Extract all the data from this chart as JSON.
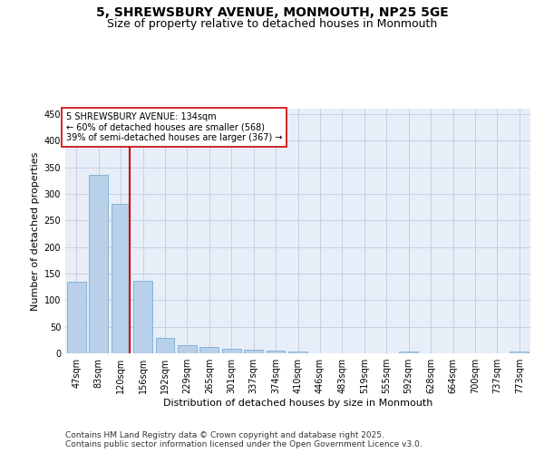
{
  "title_line1": "5, SHREWSBURY AVENUE, MONMOUTH, NP25 5GE",
  "title_line2": "Size of property relative to detached houses in Monmouth",
  "xlabel": "Distribution of detached houses by size in Monmouth",
  "ylabel": "Number of detached properties",
  "categories": [
    "47sqm",
    "83sqm",
    "120sqm",
    "156sqm",
    "192sqm",
    "229sqm",
    "265sqm",
    "301sqm",
    "337sqm",
    "374sqm",
    "410sqm",
    "446sqm",
    "483sqm",
    "519sqm",
    "555sqm",
    "592sqm",
    "628sqm",
    "664sqm",
    "700sqm",
    "737sqm",
    "773sqm"
  ],
  "values": [
    134,
    336,
    281,
    136,
    29,
    15,
    12,
    8,
    6,
    5,
    3,
    0,
    0,
    0,
    0,
    3,
    0,
    0,
    0,
    0,
    4
  ],
  "bar_color": "#b8d0ea",
  "bar_edge_color": "#7aaed4",
  "vline_x_index": 2,
  "vline_color": "#cc0000",
  "annotation_text": "5 SHREWSBURY AVENUE: 134sqm\n← 60% of detached houses are smaller (568)\n39% of semi-detached houses are larger (367) →",
  "annotation_box_color": "#ffffff",
  "annotation_box_edge": "#cc0000",
  "ylim": [
    0,
    460
  ],
  "yticks": [
    0,
    50,
    100,
    150,
    200,
    250,
    300,
    350,
    400,
    450
  ],
  "footer_text": "Contains HM Land Registry data © Crown copyright and database right 2025.\nContains public sector information licensed under the Open Government Licence v3.0.",
  "background_color": "#e8eef8",
  "grid_color": "#c8d0e0",
  "title_fontsize": 10,
  "subtitle_fontsize": 9,
  "axis_label_fontsize": 8,
  "tick_fontsize": 7,
  "annotation_fontsize": 7,
  "footer_fontsize": 6.5
}
